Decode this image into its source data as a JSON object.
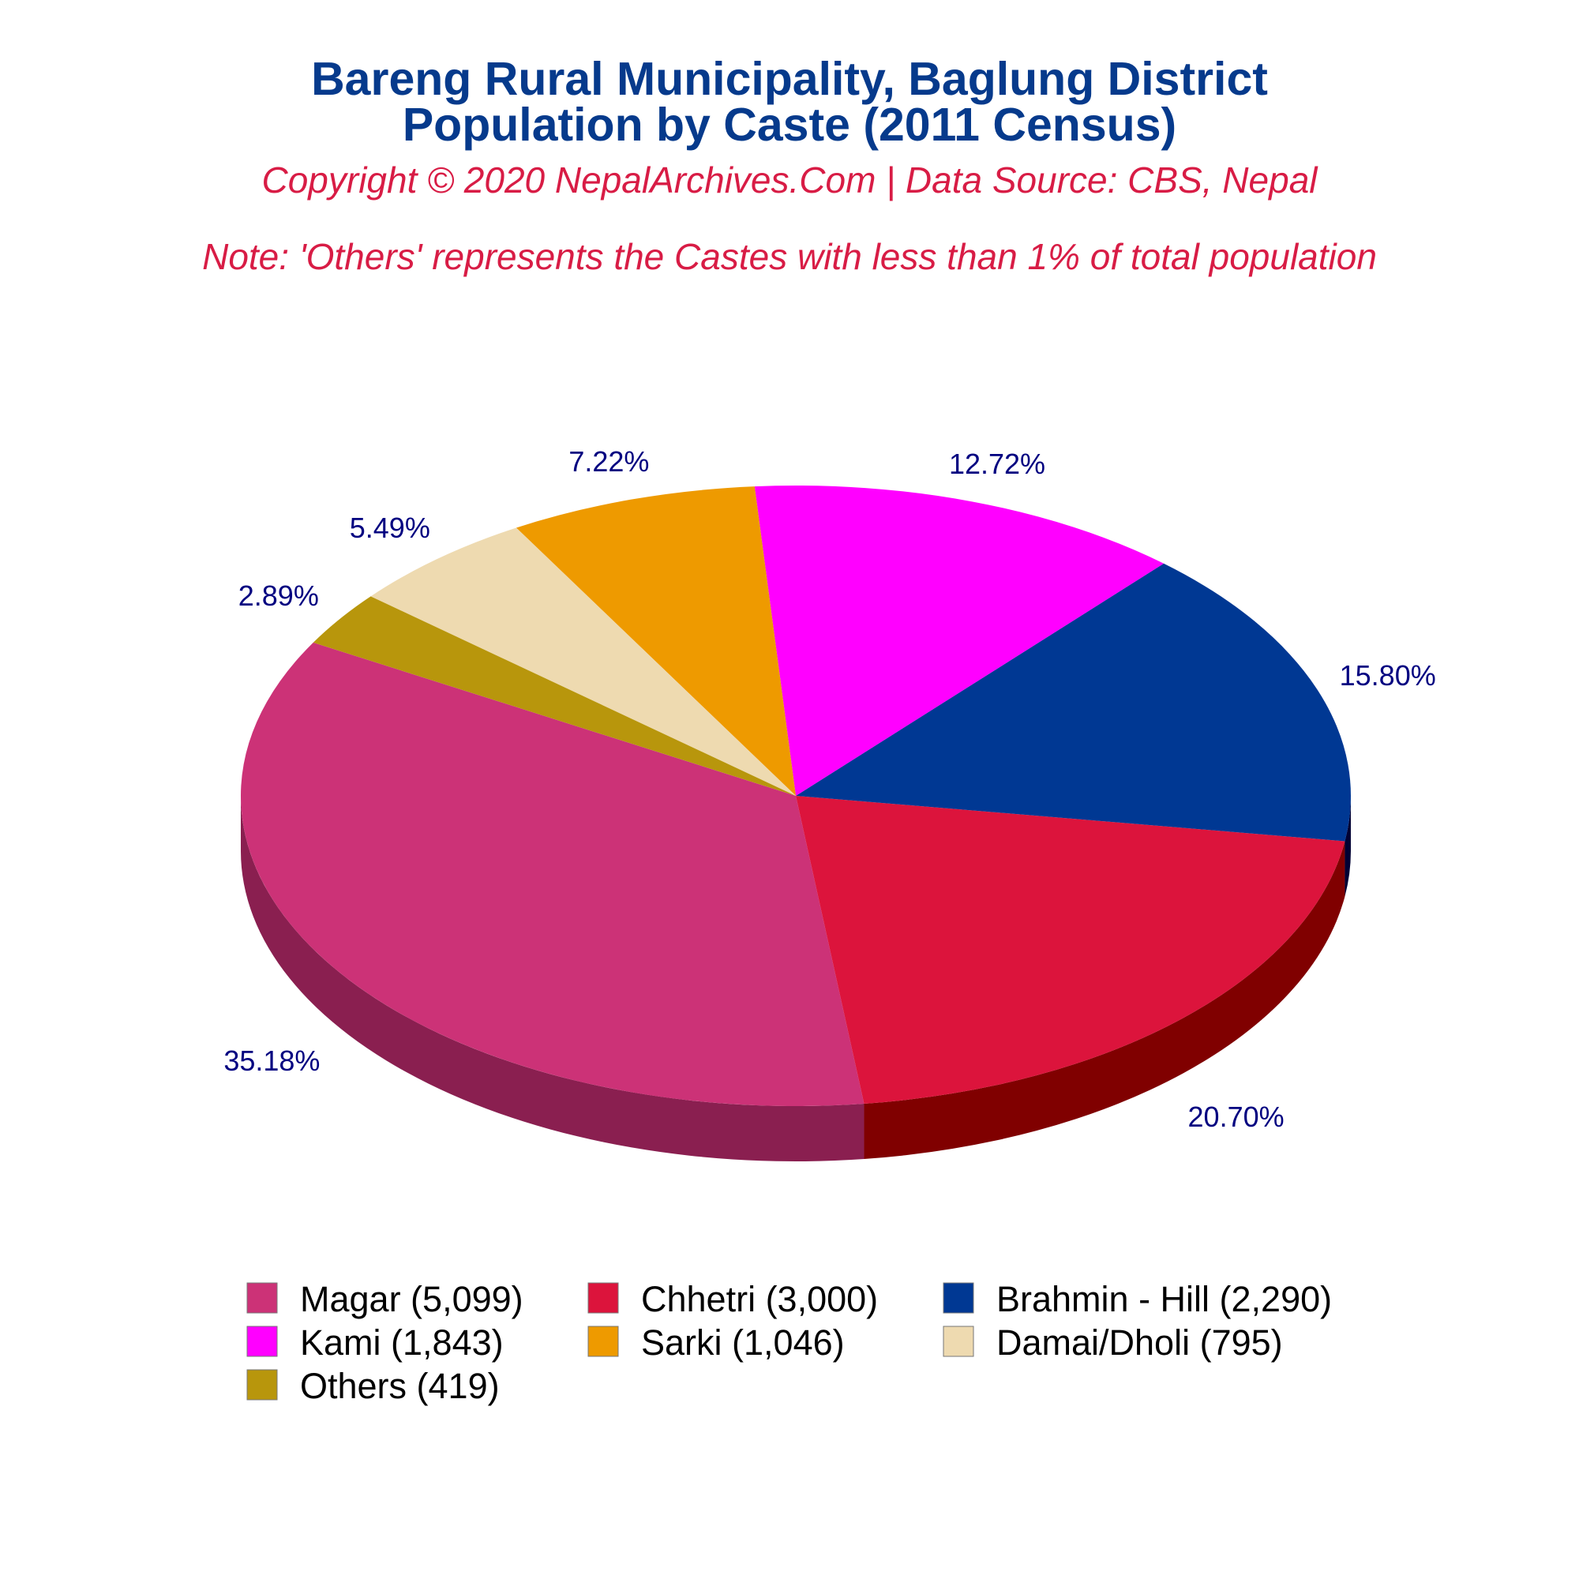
{
  "chart_data": {
    "type": "pie",
    "title": "Bareng Rural Municipality, Baglung District",
    "subtitle": "Population by Caste (2011 Census)",
    "copyright": "Copyright © 2020 NepalArchives.Com | Data Source: CBS, Nepal",
    "note": "Note: 'Others' represents the Castes with less than 1% of total population",
    "slices": [
      {
        "label": "Magar (5,099)",
        "value": 5099,
        "percent_label": "35.18%",
        "color": "#cc3277",
        "side_color": "#8a1f50"
      },
      {
        "label": "Chhetri (3,000)",
        "value": 3000,
        "percent_label": "20.70%",
        "color": "#dc143c",
        "side_color": "#800000"
      },
      {
        "label": "Brahmin - Hill (2,290)",
        "value": 2290,
        "percent_label": "15.80%",
        "color": "#003893",
        "side_color": "#000033"
      },
      {
        "label": "Kami (1,843)",
        "value": 1843,
        "percent_label": "12.72%",
        "color": "#ff00ff",
        "side_color": "#a300a3"
      },
      {
        "label": "Sarki (1,046)",
        "value": 1046,
        "percent_label": "7.22%",
        "color": "#ee9a00",
        "side_color": "#8f3a00"
      },
      {
        "label": "Damai/Dholi (795)",
        "value": 795,
        "percent_label": "5.49%",
        "color": "#eedab0",
        "side_color": "#b39b6a"
      },
      {
        "label": "Others (419)",
        "value": 419,
        "percent_label": "2.89%",
        "color": "#b8960c",
        "side_color": "#6e5a07"
      }
    ],
    "label_color": "#000080",
    "legend_position": "bottom"
  }
}
